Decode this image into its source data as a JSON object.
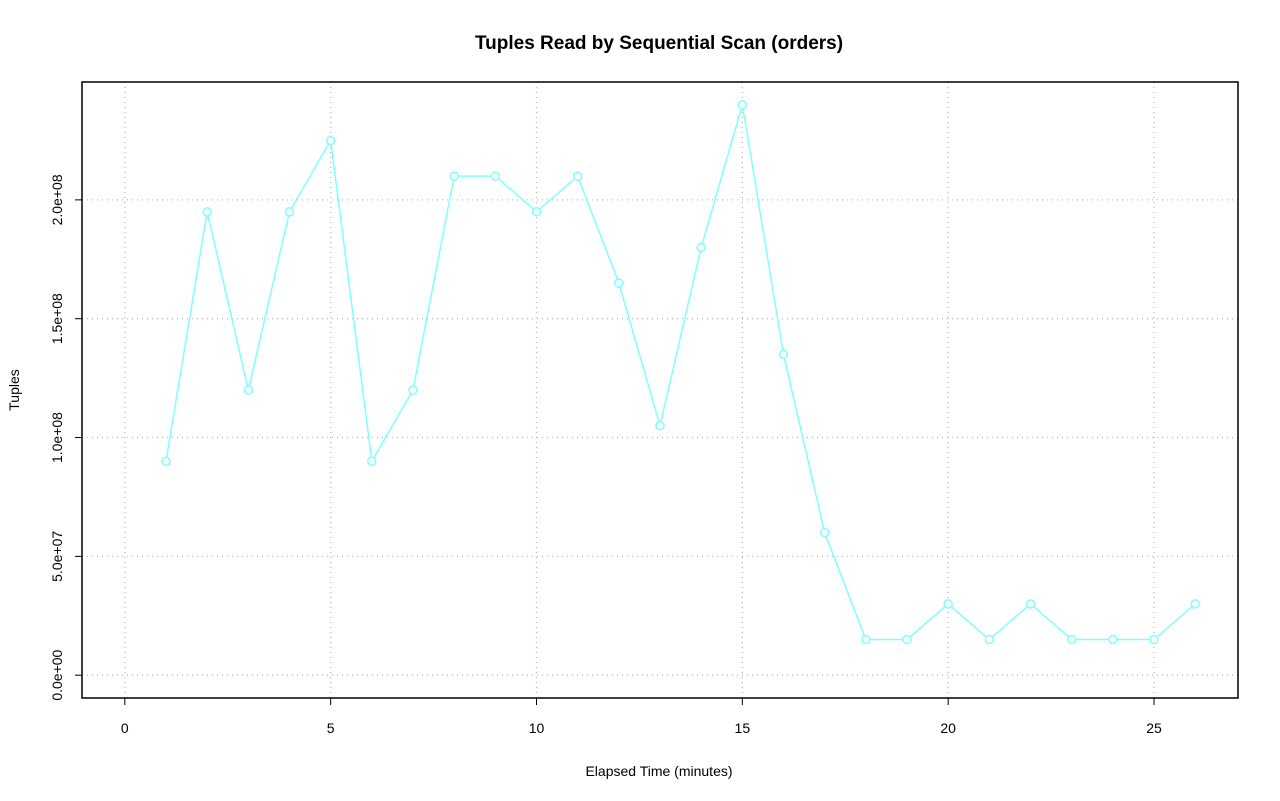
{
  "chart_data": {
    "type": "line",
    "title": "Tuples Read by Sequential Scan (orders)",
    "x_label": "Elapsed Time (minutes)",
    "y_label": "Tuples",
    "x": [
      1,
      2,
      3,
      4,
      5,
      6,
      7,
      8,
      9,
      10,
      11,
      12,
      13,
      14,
      15,
      16,
      17,
      18,
      19,
      20,
      21,
      22,
      23,
      24,
      25,
      26
    ],
    "series": [
      {
        "color": "#80ffff",
        "values": [
          90000000,
          195000000,
          120000000,
          195000000,
          225000000,
          90000000,
          120000000,
          210000000,
          210000000,
          195000000,
          210000000,
          165000000,
          105000000,
          180000000,
          240000000,
          135000000,
          60000000,
          15000000,
          15000000,
          30000000,
          15000000,
          30000000,
          15000000,
          15000000,
          15000000,
          30000000
        ]
      }
    ],
    "xlim": [
      -1.04,
      27.04
    ],
    "xticks": [
      0,
      5,
      10,
      15,
      20,
      25
    ],
    "ylim": [
      -9600000,
      249600000
    ],
    "yticks": [
      {
        "value": 0,
        "label": "0.0e+00"
      },
      {
        "value": 50000000,
        "label": "5.0e+07"
      },
      {
        "value": 100000000,
        "label": "1.0e+08"
      },
      {
        "value": 150000000,
        "label": "1.5e+08"
      },
      {
        "value": 200000000,
        "label": "2.0e+08"
      }
    ],
    "grid": true
  }
}
